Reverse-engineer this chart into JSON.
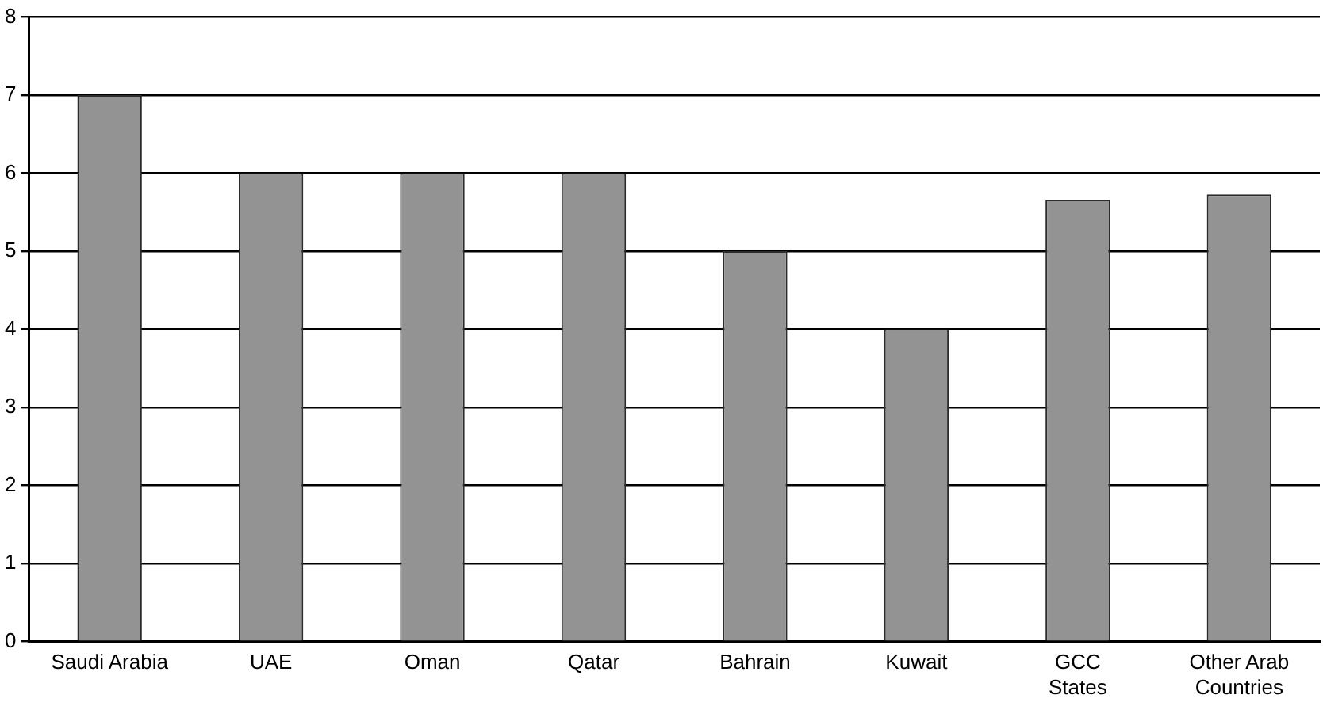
{
  "chart_data": {
    "type": "bar",
    "categories": [
      "Saudi Arabia",
      "UAE",
      "Oman",
      "Qatar",
      "Bahrain",
      "Kuwait",
      "GCC\nStates",
      "Other Arab\nCountries"
    ],
    "values": [
      7,
      6,
      6,
      6,
      5,
      4,
      5.66,
      5.73
    ],
    "color": "#939393",
    "ylim": [
      0,
      8
    ],
    "yticks": [
      0,
      1,
      2,
      3,
      4,
      5,
      6,
      7,
      8
    ],
    "grid": "y"
  }
}
